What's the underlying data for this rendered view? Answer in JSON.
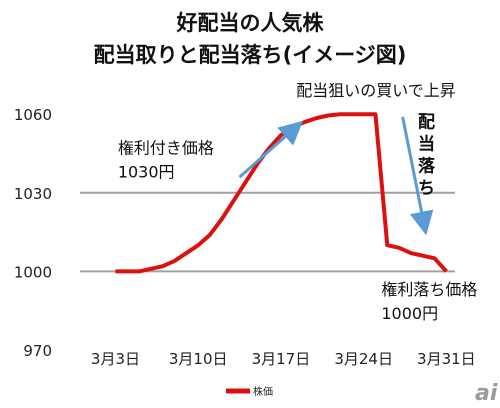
{
  "chart_data": {
    "type": "line",
    "title_lines": [
      "好配当の人気株",
      "配当取りと配当落ち(イメージ図)"
    ],
    "x_ticks": [
      {
        "day": 3,
        "label": "3月3日"
      },
      {
        "day": 10,
        "label": "3月10日"
      },
      {
        "day": 17,
        "label": "3月17日"
      },
      {
        "day": 24,
        "label": "3月24日"
      },
      {
        "day": 31,
        "label": "3月31日"
      }
    ],
    "xlim": [
      0,
      33
    ],
    "ylim": [
      970,
      1070
    ],
    "y_ticks": [
      970,
      1000,
      1030,
      1060
    ],
    "reference_lines": [
      1000,
      1030
    ],
    "series": [
      {
        "name": "株価",
        "color": "#dd1010",
        "x": [
          3,
          5,
          6,
          7,
          8,
          9,
          10,
          11,
          12,
          13,
          14,
          15,
          16,
          17,
          18,
          19,
          20,
          21,
          22,
          23,
          24,
          25,
          26,
          27,
          28,
          29,
          30,
          31
        ],
        "y": [
          1000,
          1000,
          1001,
          1002,
          1004,
          1007,
          1010,
          1014,
          1020,
          1027,
          1034,
          1041,
          1047,
          1052,
          1055,
          1057,
          1058.5,
          1059.5,
          1060,
          1060,
          1060,
          1060,
          1010,
          1009,
          1007,
          1006,
          1005,
          1000
        ]
      }
    ],
    "annotations": [
      {
        "text_lines": [
          "権利付き価格",
          "1030円"
        ],
        "x": 3.2,
        "y": 1045
      },
      {
        "text_lines": [
          "配当狙いの買いで上昇"
        ],
        "x": 18.3,
        "y": 1067
      },
      {
        "text_lines": [
          "配",
          "当",
          "落",
          "ち"
        ],
        "x": 28.6,
        "y": 1055,
        "vertical": true
      },
      {
        "text_lines": [
          "権利落ち価格",
          "1000円"
        ],
        "x": 25.5,
        "y": 991
      }
    ],
    "arrows": [
      {
        "from": [
          13.5,
          1036
        ],
        "to": [
          18.5,
          1056
        ],
        "color": "#5b9bd5"
      },
      {
        "from": [
          27.3,
          1059
        ],
        "to": [
          29.2,
          1016
        ],
        "color": "#5b9bd5"
      }
    ],
    "legend_position": "bottom",
    "grid": false
  },
  "brand": {
    "logo_text": "ai"
  }
}
